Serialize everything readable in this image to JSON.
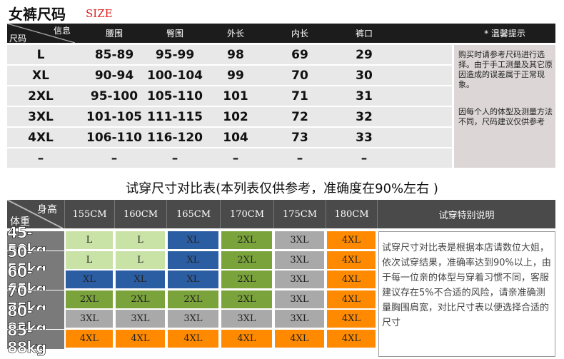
{
  "title": "女裤尺码",
  "title_en": "SIZE",
  "size_table": {
    "corner_top": "信息",
    "corner_bottom": "尺码",
    "headers": [
      "腰围",
      "臀围",
      "外长",
      "内长",
      "裤口"
    ],
    "note_header": "* 温馨提示",
    "rows": [
      [
        "L",
        "85-89",
        "95-99",
        "98",
        "69",
        "29"
      ],
      [
        "XL",
        "90-94",
        "100-104",
        "99",
        "70",
        "30"
      ],
      [
        "2XL",
        "95-100",
        "105-110",
        "101",
        "71",
        "31"
      ],
      [
        "3XL",
        "101-105",
        "111-115",
        "102",
        "72",
        "32"
      ],
      [
        "4XL",
        "106-110",
        "116-120",
        "104",
        "73",
        "33"
      ],
      [
        "–",
        "–",
        "–",
        "–",
        "–",
        "–"
      ]
    ],
    "notes": [
      "购买时请参考尺码进行选择。由于手工测量及其它原因造成的误差属于正常现象。",
      "因每个人的体型及测量方法不同，尺码建议仅供参考"
    ]
  },
  "fit_table": {
    "title": "试穿尺寸对比表(本列表仅供参考，准确度在90%左右 )",
    "corner_top": "身高",
    "corner_bottom": "体重",
    "heights": [
      "155CM",
      "160CM",
      "165CM",
      "170CM",
      "175CM",
      "180CM"
    ],
    "note_header": "试穿特别说明",
    "rows": [
      {
        "weight": "45-50kg",
        "sizes": [
          "L",
          "L",
          "XL",
          "2XL",
          "3XL",
          "4XL"
        ]
      },
      {
        "weight": "50-55kg",
        "sizes": [
          "L",
          "L",
          "XL",
          "2XL",
          "3XL",
          "4XL"
        ]
      },
      {
        "weight": "60-65kg",
        "sizes": [
          "XL",
          "XL",
          "XL",
          "2XL",
          "3XL",
          "4XL"
        ]
      },
      {
        "weight": "70-75kg",
        "sizes": [
          "2XL",
          "2XL",
          "2XL",
          "2XL",
          "3XL",
          "4XL"
        ]
      },
      {
        "weight": "80-82kg",
        "sizes": [
          "3XL",
          "3XL",
          "3XL",
          "3XL",
          "3XL",
          "4XL"
        ]
      },
      {
        "weight": "85-88kg",
        "sizes": [
          "4XL",
          "4XL",
          "4XL",
          "4XL",
          "4XL",
          "4XL"
        ]
      }
    ],
    "note": "试穿尺寸对比表是根据本店请数位大姐，依次试穿结果，准确率达到90%以上，由于每一位亲的体型与穿着习惯不同，客服建议存在5%不合适的风险，请亲准确测量胸围肩宽，对比尺寸表以便选择合适的尺寸"
  },
  "size_colors": {
    "L": "#c9e2a6",
    "XL": "#2b5da3",
    "2XL": "#7ba33c",
    "3XL": "#a9a9a9",
    "4XL": "#ff8a00"
  }
}
